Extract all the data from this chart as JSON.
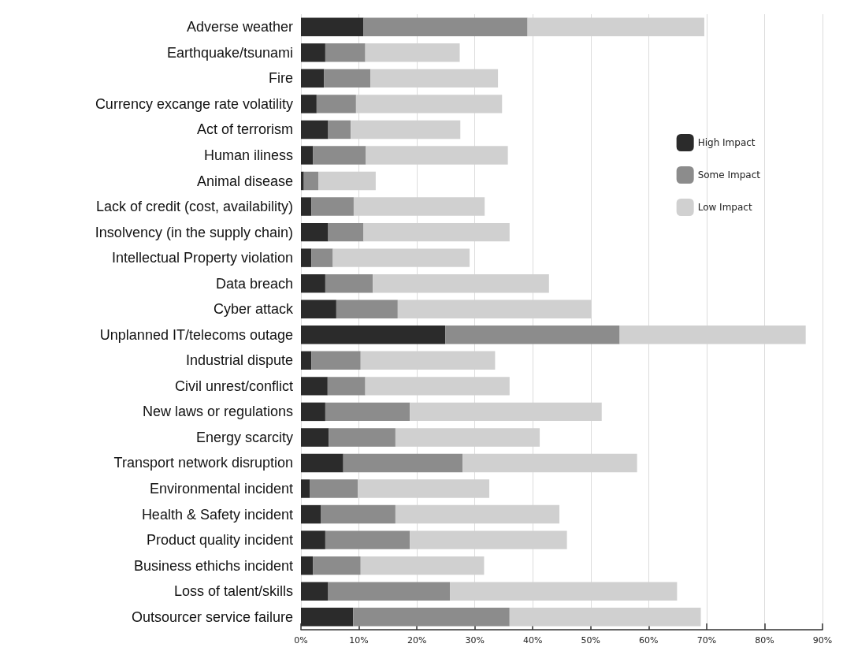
{
  "chart_data": {
    "type": "bar",
    "orientation": "horizontal",
    "stacked": true,
    "categories": [
      "Adverse weather",
      "Earthquake/tsunami",
      "Fire",
      "Currency excange rate volatility",
      "Act of terrorism",
      "Human iliness",
      "Animal disease",
      "Lack of credit (cost, availability)",
      "Insolvency (in the supply chain)",
      "Intellectual Property violation",
      "Data breach",
      "Cyber attack",
      "Unplanned IT/telecoms outage",
      "Industrial dispute",
      "Civil unrest/conflict",
      "New laws or regulations",
      "Energy scarcity",
      "Transport network disruption",
      "Environmental incident",
      "Health & Safety incident",
      "Product quality incident",
      "Business ethichs incident",
      "Loss of talent/skills",
      "Outsourcer service failure"
    ],
    "series": [
      {
        "name": "High Impact",
        "color": "#2b2b2b",
        "values": [
          10.8,
          4.2,
          4.0,
          2.7,
          4.7,
          2.1,
          0.5,
          1.8,
          4.7,
          1.8,
          4.2,
          6.1,
          24.9,
          1.8,
          4.6,
          4.2,
          4.8,
          7.3,
          1.5,
          3.4,
          4.2,
          2.1,
          4.7,
          9.0
        ]
      },
      {
        "name": "Some Impact",
        "color": "#8c8c8c",
        "values": [
          28.3,
          6.9,
          8.0,
          6.8,
          3.9,
          9.1,
          2.5,
          7.3,
          6.1,
          3.7,
          8.2,
          10.6,
          30.1,
          8.5,
          6.5,
          14.6,
          11.5,
          20.6,
          8.3,
          12.9,
          14.6,
          8.2,
          21.0,
          27.0
        ]
      },
      {
        "name": "Low Impact",
        "color": "#d0d0d0",
        "values": [
          30.5,
          16.3,
          22.0,
          25.2,
          18.9,
          24.5,
          9.9,
          22.6,
          25.2,
          23.6,
          30.4,
          33.4,
          32.1,
          23.2,
          24.9,
          33.1,
          24.9,
          30.1,
          22.7,
          28.3,
          27.1,
          21.3,
          39.2,
          33.0
        ]
      }
    ],
    "xlim": [
      0,
      90
    ],
    "xticks": [
      {
        "value": 0,
        "label": "0%"
      },
      {
        "value": 10,
        "label": "10%"
      },
      {
        "value": 20,
        "label": "20%"
      },
      {
        "value": 30,
        "label": "30%"
      },
      {
        "value": 40,
        "label": "40%"
      },
      {
        "value": 50,
        "label": "50%"
      },
      {
        "value": 60,
        "label": "60%"
      },
      {
        "value": 70,
        "label": "70%"
      },
      {
        "value": 80,
        "label": "80%"
      },
      {
        "value": 90,
        "label": "90%"
      }
    ],
    "grid": "x",
    "legend": "top right"
  }
}
